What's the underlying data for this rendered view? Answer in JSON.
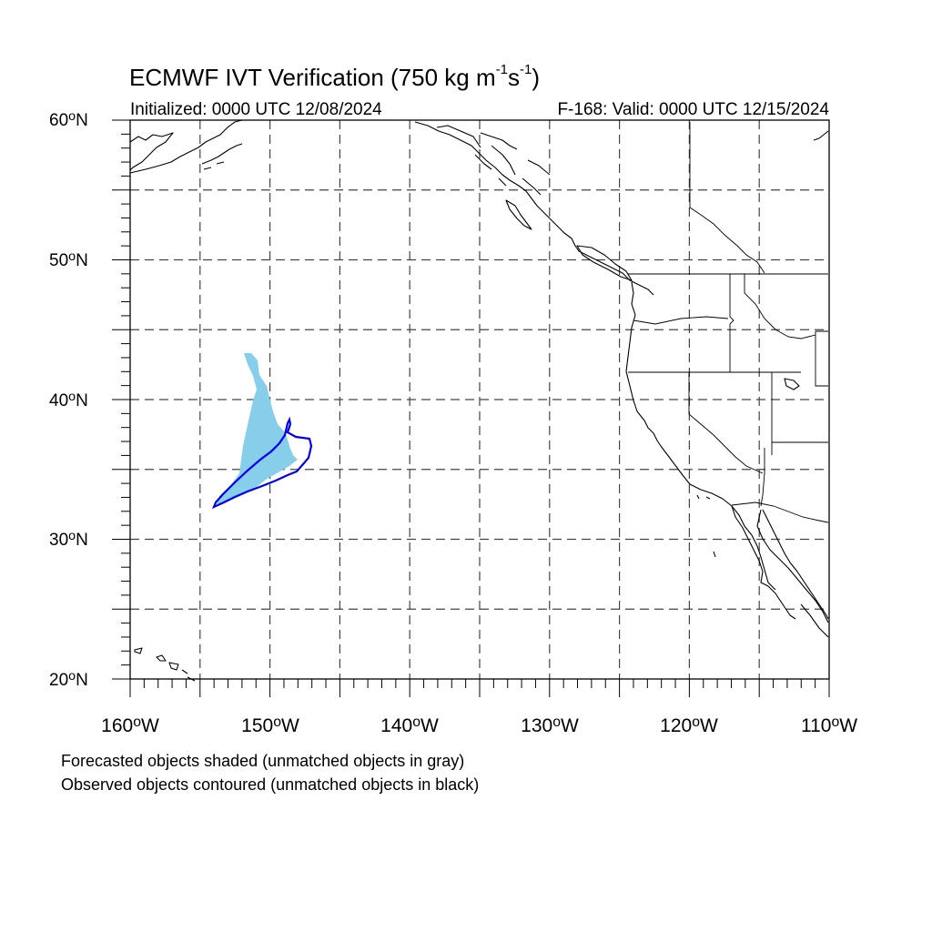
{
  "title": {
    "prefix": "ECMWF IVT Verification (750 kg m",
    "exp1": "-1",
    "mid": "s",
    "exp2": "-1",
    "suffix": ")"
  },
  "subtitle": {
    "initialized": "Initialized: 0000 UTC 12/08/2024",
    "valid": "F-168: Valid: 0000 UTC 12/15/2024"
  },
  "axes": {
    "lat_labels": [
      {
        "num": "60",
        "suffix": "N"
      },
      {
        "num": "50",
        "suffix": "N"
      },
      {
        "num": "40",
        "suffix": "N"
      },
      {
        "num": "30",
        "suffix": "N"
      },
      {
        "num": "20",
        "suffix": "N"
      }
    ],
    "lon_labels": [
      {
        "num": "160",
        "suffix": "W"
      },
      {
        "num": "150",
        "suffix": "W"
      },
      {
        "num": "140",
        "suffix": "W"
      },
      {
        "num": "130",
        "suffix": "W"
      },
      {
        "num": "120",
        "suffix": "W"
      },
      {
        "num": "110",
        "suffix": "W"
      }
    ],
    "lat_range": [
      20,
      60
    ],
    "lon_range": [
      -160,
      -110
    ],
    "grid": "dashed, every 5 degrees"
  },
  "objects": {
    "forecast_color": "#87ceeb",
    "observed_color": "#0000ee"
  },
  "notes": {
    "line1": "Forecasted objects shaded (unmatched objects in gray)",
    "line2": "Observed objects contoured (unmatched objects in black)"
  }
}
